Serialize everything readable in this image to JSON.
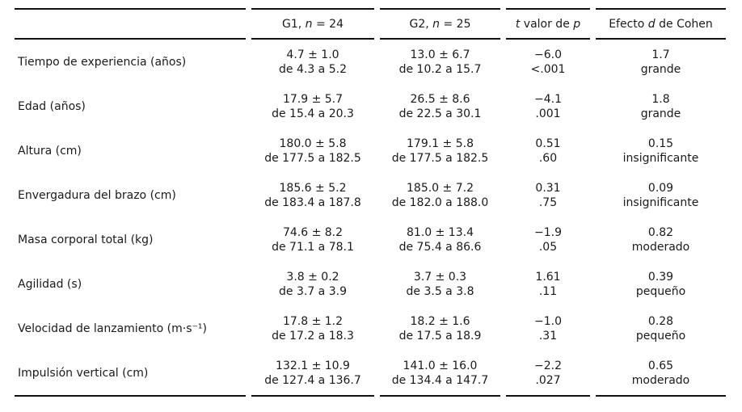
{
  "header": {
    "g1_parts": [
      "G1, ",
      "n",
      " = 24"
    ],
    "g2_parts": [
      "G2, ",
      "n",
      " = 25"
    ],
    "tp_parts": [
      "t",
      " valor de ",
      "p"
    ],
    "effect_parts": [
      "Efecto ",
      "d",
      " de Cohen"
    ]
  },
  "rows": [
    {
      "label": "Tiempo de experiencia (años)",
      "g1": [
        "4.7 ± 1.0",
        "de 4.3 a 5.2"
      ],
      "g2": [
        "13.0 ± 6.7",
        "de 10.2 a 15.7"
      ],
      "tp": [
        "−6.0",
        "<.001"
      ],
      "effect": [
        "1.7",
        "grande"
      ]
    },
    {
      "label": "Edad (años)",
      "g1": [
        "17.9 ± 5.7",
        "de 15.4 a 20.3"
      ],
      "g2": [
        "26.5 ± 8.6",
        "de 22.5 a 30.1"
      ],
      "tp": [
        "−4.1",
        ".001"
      ],
      "effect": [
        "1.8",
        "grande"
      ]
    },
    {
      "label": "Altura (cm)",
      "g1": [
        "180.0 ± 5.8",
        "de 177.5 a 182.5"
      ],
      "g2": [
        "179.1 ± 5.8",
        "de 177.5 a 182.5"
      ],
      "tp": [
        "0.51",
        ".60"
      ],
      "effect": [
        "0.15",
        "insignificante"
      ]
    },
    {
      "label": "Envergadura del brazo (cm)",
      "g1": [
        "185.6 ± 5.2",
        "de 183.4 a 187.8"
      ],
      "g2": [
        "185.0 ± 7.2",
        "de 182.0 a 188.0"
      ],
      "tp": [
        "0.31",
        ".75"
      ],
      "effect": [
        "0.09",
        "insignificante"
      ]
    },
    {
      "label": "Masa corporal total (kg)",
      "g1": [
        "74.6 ± 8.2",
        "de 71.1 a 78.1"
      ],
      "g2": [
        "81.0 ± 13.4",
        "de 75.4 a 86.6"
      ],
      "tp": [
        "−1.9",
        ".05"
      ],
      "effect": [
        "0.82",
        "moderado"
      ]
    },
    {
      "label": "Agilidad (s)",
      "g1": [
        "3.8 ± 0.2",
        "de 3.7 a 3.9"
      ],
      "g2": [
        "3.7 ± 0.3",
        "de 3.5 a 3.8"
      ],
      "tp": [
        "1.61",
        ".11"
      ],
      "effect": [
        "0.39",
        "pequeño"
      ]
    },
    {
      "label": "Velocidad de lanzamiento (m·s⁻¹)",
      "g1": [
        "17.8 ± 1.2",
        "de 17.2 a 18.3"
      ],
      "g2": [
        "18.2 ± 1.6",
        "de 17.5 a 18.9"
      ],
      "tp": [
        "−1.0",
        ".31"
      ],
      "effect": [
        "0.28",
        "pequeño"
      ]
    },
    {
      "label": "Impulsión vertical (cm)",
      "g1": [
        "132.1 ± 10.9",
        "de 127.4 a 136.7"
      ],
      "g2": [
        "141.0 ± 16.0",
        "de 134.4 a 147.7"
      ],
      "tp": [
        "−2.2",
        ".027"
      ],
      "effect": [
        "0.65",
        "moderado"
      ]
    }
  ]
}
